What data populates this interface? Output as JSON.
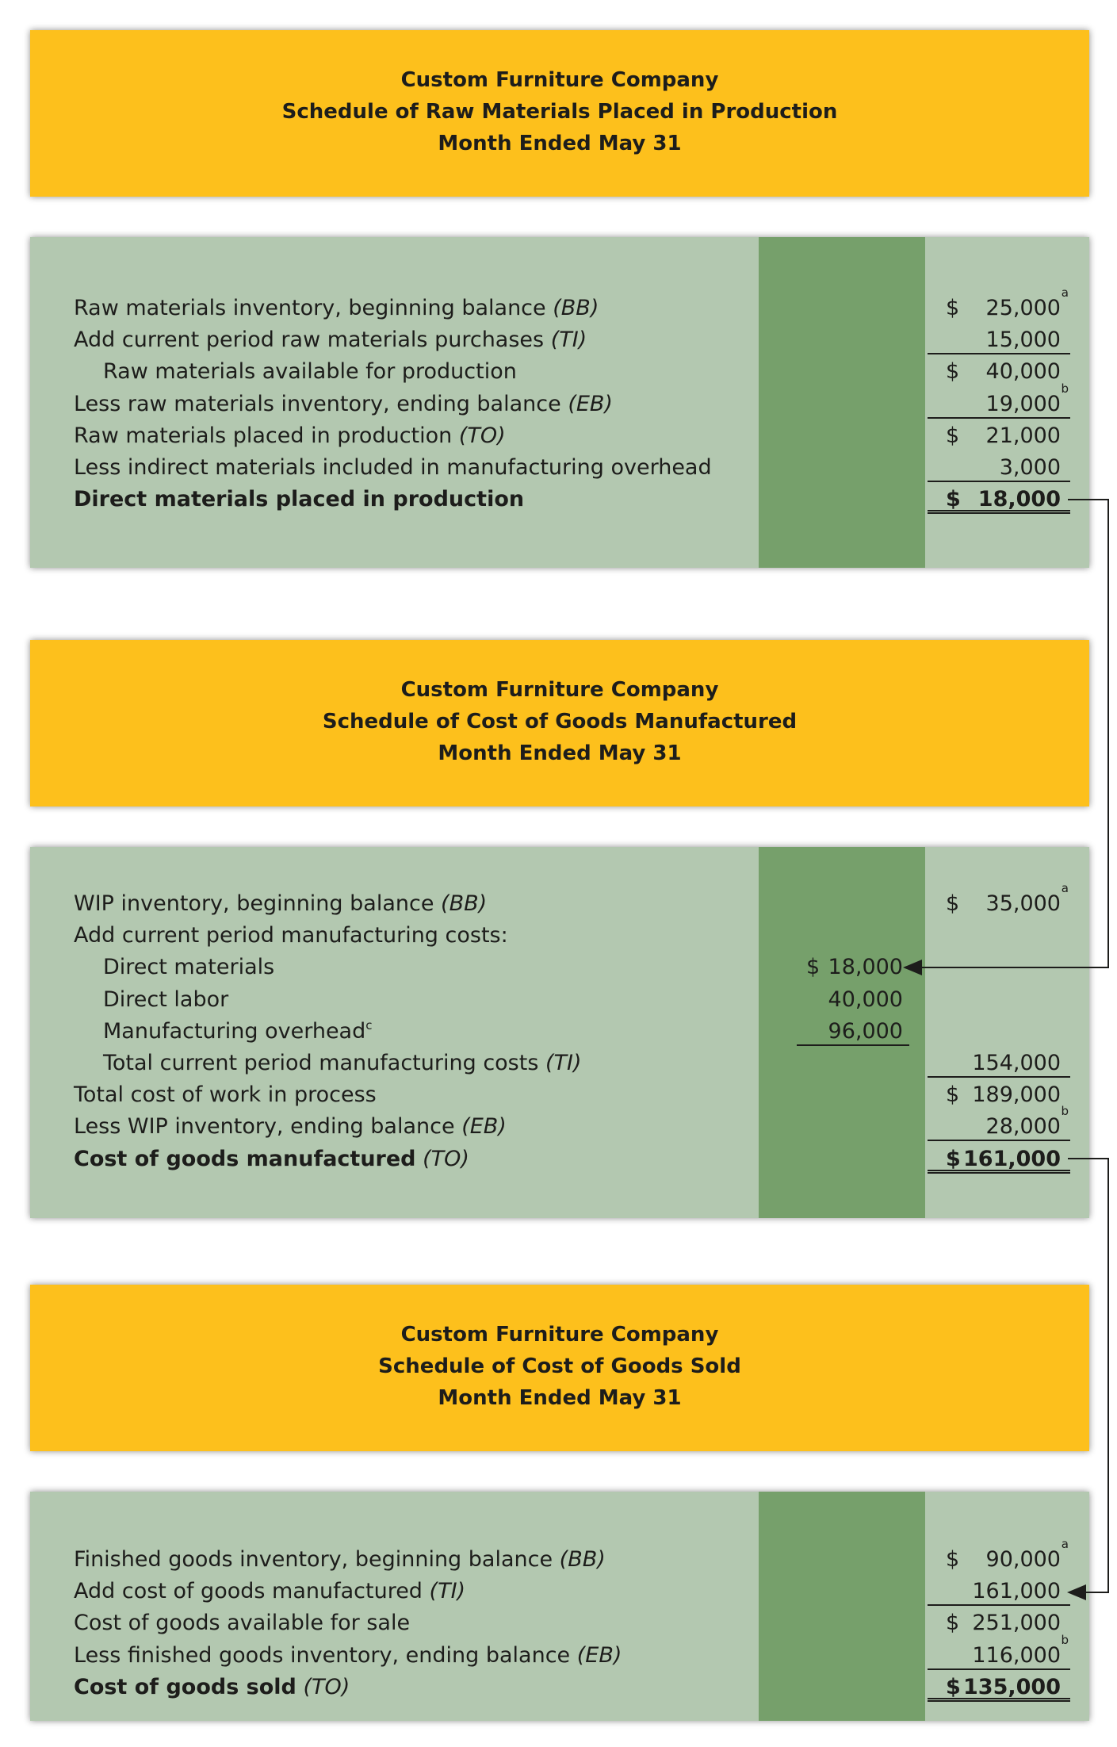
{
  "schedules": [
    {
      "title": [
        "Custom Furniture Company",
        "Schedule of Raw Materials Placed in Production",
        "Month Ended May 31"
      ],
      "rows": [
        {
          "label": "Raw materials inventory, beginning balance",
          "tag": "(BB)",
          "col": "right",
          "currency": "$",
          "amount": "25,000",
          "amount_note": "a"
        },
        {
          "label": "Add current period raw materials purchases",
          "tag": "(TI)",
          "col": "right",
          "amount": "15,000",
          "rule": "single"
        },
        {
          "label": "Raw materials available for production",
          "indent": true,
          "col": "right",
          "currency": "$",
          "amount": "40,000"
        },
        {
          "label": "Less raw materials inventory, ending balance",
          "tag": "(EB)",
          "col": "right",
          "amount": "19,000",
          "amount_note": "b",
          "rule": "single"
        },
        {
          "label": "Raw materials placed in production",
          "tag": "(TO)",
          "col": "right",
          "currency": "$",
          "amount": "21,000"
        },
        {
          "label": "Less indirect materials included in manufacturing overhead",
          "col": "right",
          "amount": "3,000",
          "rule": "single"
        },
        {
          "label": "Direct materials placed in production",
          "bold": true,
          "col": "right",
          "currency": "$",
          "amount": "18,000",
          "rule": "double"
        }
      ]
    },
    {
      "title": [
        "Custom Furniture Company",
        "Schedule of Cost of Goods Manufactured",
        "Month Ended May 31"
      ],
      "rows": [
        {
          "label": "WIP inventory, beginning balance",
          "tag": "(BB)",
          "col": "right",
          "currency": "$",
          "amount": "35,000",
          "amount_note": "a"
        },
        {
          "label": "Add current period manufacturing costs:"
        },
        {
          "label": "Direct materials",
          "indent": true,
          "col": "mid",
          "currency": "$",
          "amount": "18,000"
        },
        {
          "label": "Direct labor",
          "indent": true,
          "col": "mid",
          "amount": "40,000"
        },
        {
          "label": "Manufacturing overhead",
          "note": "c",
          "indent": true,
          "col": "mid",
          "amount": "96,000",
          "rule": "single"
        },
        {
          "label": "Total current period manufacturing costs",
          "tag": "(TI)",
          "indent": true,
          "col": "right",
          "amount": "154,000",
          "rule": "single"
        },
        {
          "label": "Total cost of work in process",
          "col": "right",
          "currency": "$",
          "amount": "189,000"
        },
        {
          "label": "Less WIP inventory, ending balance",
          "tag": "(EB)",
          "col": "right",
          "amount": "28,000",
          "amount_note": "b",
          "rule": "single"
        },
        {
          "label": "Cost of goods manufactured",
          "tag": "(TO)",
          "bold": true,
          "col": "right",
          "currency": "$",
          "amount": "161,000",
          "rule": "double"
        }
      ]
    },
    {
      "title": [
        "Custom Furniture Company",
        "Schedule of Cost of Goods Sold",
        "Month Ended May 31"
      ],
      "rows": [
        {
          "label": "Finished goods inventory, beginning balance",
          "tag": "(BB)",
          "col": "right",
          "currency": "$",
          "amount": "90,000",
          "amount_note": "a"
        },
        {
          "label": "Add cost of goods manufactured",
          "tag": "(TI)",
          "col": "right",
          "amount": "161,000",
          "rule": "single"
        },
        {
          "label": "Cost of goods available for sale",
          "col": "right",
          "currency": "$",
          "amount": "251,000"
        },
        {
          "label": "Less finished goods inventory, ending balance",
          "tag": "(EB)",
          "col": "right",
          "amount": "116,000",
          "amount_note": "b",
          "rule": "single"
        },
        {
          "label": "Cost of goods sold",
          "tag": "(TO)",
          "bold": true,
          "col": "right",
          "currency": "$",
          "amount": "135,000",
          "rule": "double"
        }
      ]
    }
  ]
}
